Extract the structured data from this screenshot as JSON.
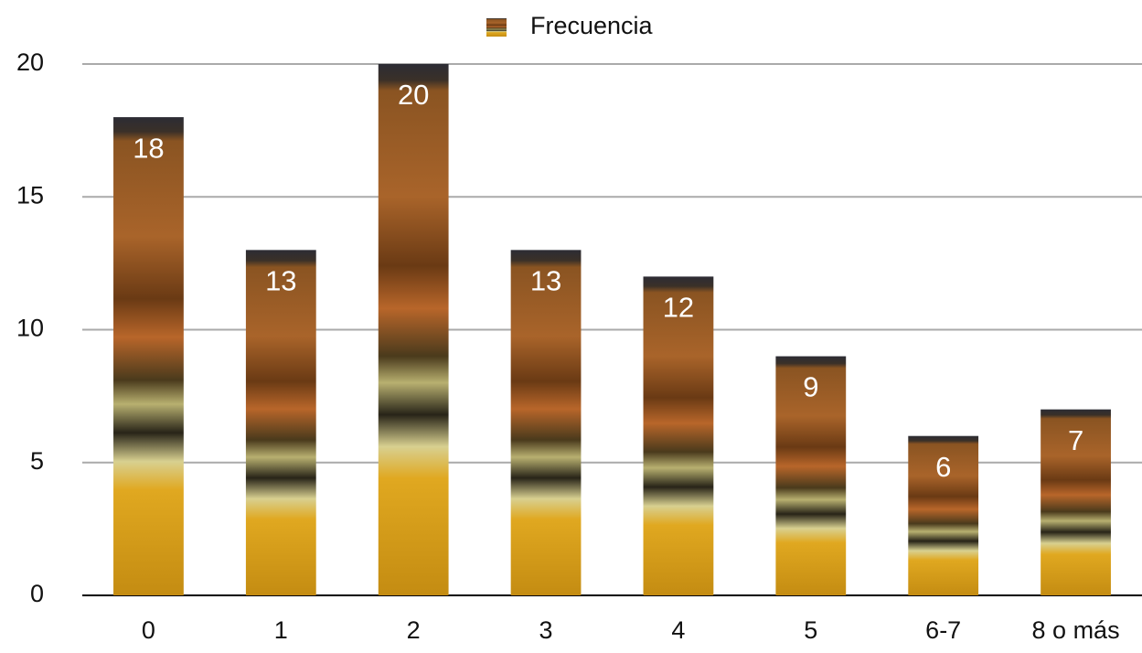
{
  "chart_data": {
    "type": "bar",
    "legend": "Frecuencia",
    "categories": [
      "0",
      "1",
      "2",
      "3",
      "4",
      "5",
      "6-7",
      "8 o más"
    ],
    "values": [
      18,
      13,
      20,
      13,
      12,
      9,
      6,
      7
    ],
    "ylim": [
      0,
      20
    ],
    "yticks": [
      0,
      5,
      10,
      15,
      20
    ],
    "grid": true
  }
}
